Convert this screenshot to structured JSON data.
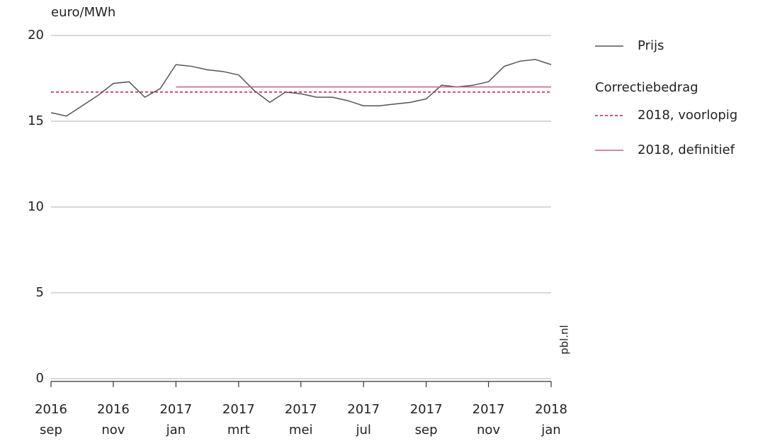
{
  "chart_data": {
    "type": "line",
    "y_axis_label": "euro/MWh",
    "source": "pbl.nl",
    "legend_title": "Correctiebedrag",
    "xlim": [
      2016.667,
      2018.0
    ],
    "xticks": [
      {
        "value": 2016.667,
        "label": [
          "2016",
          "sep"
        ]
      },
      {
        "value": 2016.833,
        "label": [
          "2016",
          "nov"
        ]
      },
      {
        "value": 2017.0,
        "label": [
          "2017",
          "jan"
        ]
      },
      {
        "value": 2017.167,
        "label": [
          "2017",
          "mrt"
        ]
      },
      {
        "value": 2017.333,
        "label": [
          "2017",
          "mei"
        ]
      },
      {
        "value": 2017.5,
        "label": [
          "2017",
          "jul"
        ]
      },
      {
        "value": 2017.667,
        "label": [
          "2017",
          "sep"
        ]
      },
      {
        "value": 2017.833,
        "label": [
          "2017",
          "nov"
        ]
      },
      {
        "value": 2018.0,
        "label": [
          "2018",
          "jan"
        ]
      }
    ],
    "ylim": [
      0,
      20
    ],
    "yticks": [
      0,
      5,
      10,
      15,
      20
    ],
    "grid": true,
    "series": [
      {
        "name": "Prijs",
        "color": "#555555",
        "style": "solid",
        "x": [
          2016.667,
          2016.708,
          2016.75,
          2016.792,
          2016.833,
          2016.875,
          2016.917,
          2016.958,
          2017.0,
          2017.042,
          2017.083,
          2017.125,
          2017.167,
          2017.208,
          2017.25,
          2017.292,
          2017.333,
          2017.375,
          2017.417,
          2017.458,
          2017.5,
          2017.542,
          2017.583,
          2017.625,
          2017.667,
          2017.708,
          2017.75,
          2017.792,
          2017.833,
          2017.875,
          2017.917,
          2017.958,
          2018.0
        ],
        "values": [
          15.5,
          15.3,
          15.9,
          16.5,
          17.2,
          17.3,
          16.4,
          16.9,
          18.3,
          18.2,
          18.0,
          17.9,
          17.7,
          16.8,
          16.1,
          16.7,
          16.6,
          16.4,
          16.4,
          16.2,
          15.9,
          15.9,
          16.0,
          16.1,
          16.3,
          17.1,
          17.0,
          17.1,
          17.3,
          18.2,
          18.5,
          18.6,
          18.3
        ]
      },
      {
        "name": "2018, voorlopig",
        "color": "#c2185b",
        "style": "dashed",
        "x": [
          2016.667,
          2018.0
        ],
        "values": [
          16.7,
          16.7
        ]
      },
      {
        "name": "2018, definitief",
        "color": "#c06090",
        "style": "solid",
        "x": [
          2017.0,
          2018.0
        ],
        "values": [
          17.0,
          17.0
        ]
      }
    ]
  }
}
